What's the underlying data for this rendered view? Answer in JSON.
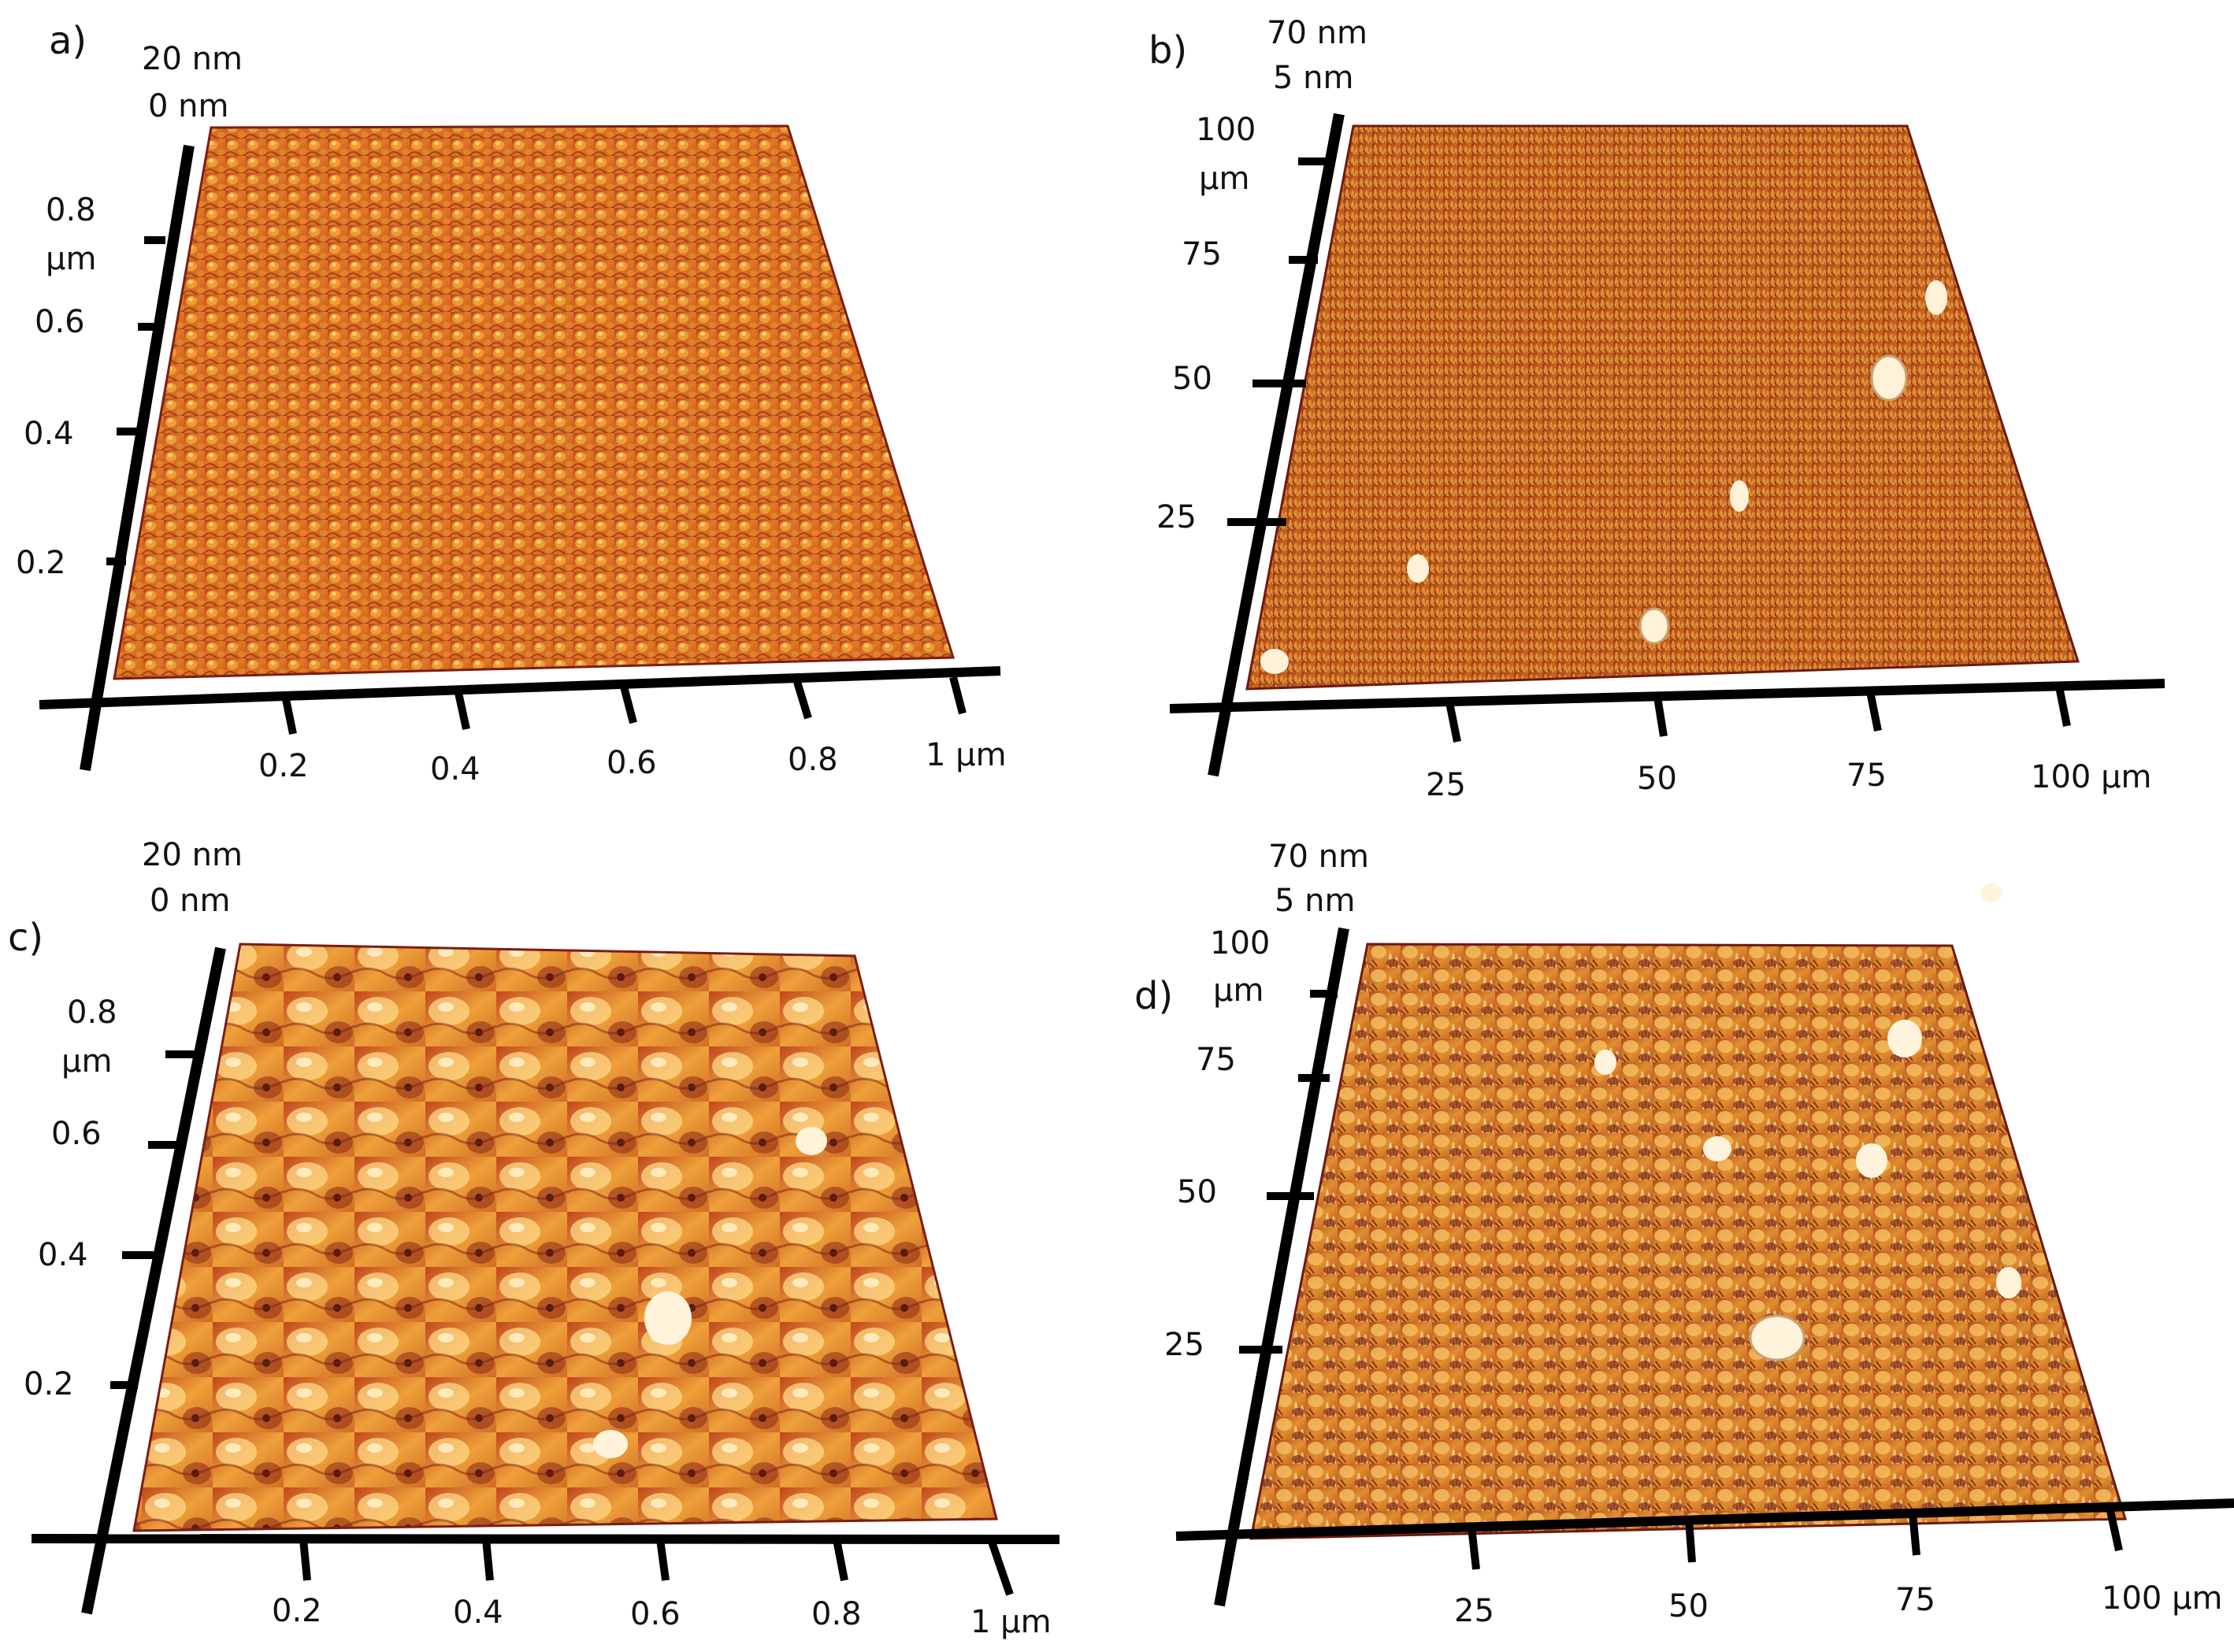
{
  "panels": [
    {
      "letter": "a)",
      "z_max": "20 nm",
      "z_min": "0 nm",
      "y_ticks": [
        "0.2",
        "0.4",
        "0.6",
        "0.8"
      ],
      "y_unit": "µm",
      "x_ticks": [
        "0.2",
        "0.4",
        "0.6",
        "0.8",
        "1 µm"
      ],
      "texture": "fine"
    },
    {
      "letter": "b)",
      "z_max": "70 nm",
      "z_min": "5 nm",
      "y_ticks": [
        "25",
        "50",
        "75",
        "100"
      ],
      "y_unit": "µm",
      "x_ticks": [
        "25",
        "50",
        "75",
        "100 µm"
      ],
      "texture": "spiky"
    },
    {
      "letter": "c)",
      "z_max": "20 nm",
      "z_min": "0 nm",
      "y_ticks": [
        "0.2",
        "0.4",
        "0.6",
        "0.8"
      ],
      "y_unit": "µm",
      "x_ticks": [
        "0.2",
        "0.4",
        "0.6",
        "0.8",
        "1 µm"
      ],
      "texture": "coarse"
    },
    {
      "letter": "d)",
      "z_max": "70 nm",
      "z_min": "5 nm",
      "y_ticks": [
        "25",
        "50",
        "75",
        "100"
      ],
      "y_unit": "µm",
      "x_ticks": [
        "25",
        "50",
        "75",
        "100 µm"
      ],
      "texture": "spiky-bright"
    }
  ],
  "colors": {
    "afm_dark": "#6b1a12",
    "afm_mid": "#c45a1c",
    "afm_light": "#f0a838",
    "afm_highlight": "#ffe9b0",
    "axis": "#000000"
  }
}
